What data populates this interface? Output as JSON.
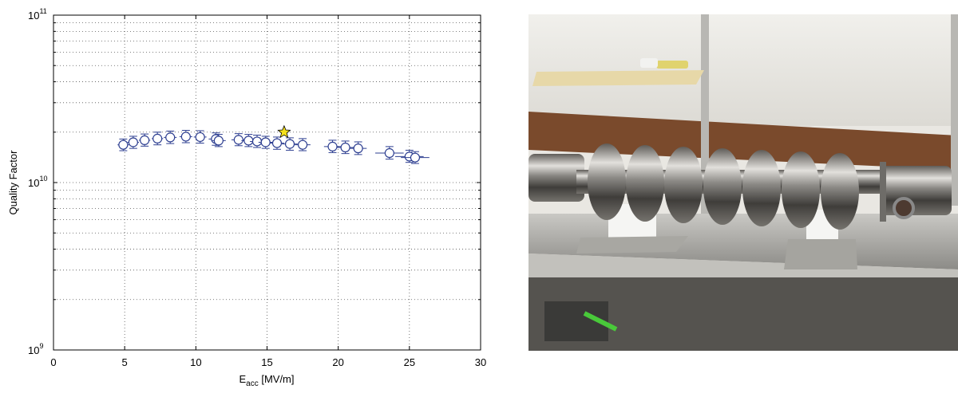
{
  "chart_data": {
    "type": "scatter",
    "title": "",
    "xlabel_main": "E",
    "xlabel_sub": "acc",
    "xlabel_unit": " [MV/m]",
    "ylabel": "Quality Factor",
    "xlim": [
      0,
      30
    ],
    "ylim": [
      1000000000.0,
      100000000000.0
    ],
    "yscale": "log",
    "grid": true,
    "xticks": [
      0,
      5,
      10,
      15,
      20,
      25,
      30
    ],
    "xtick_labels": [
      "0",
      "5",
      "10",
      "15",
      "20",
      "25",
      "30"
    ],
    "ytick_labels": [
      {
        "base": "10",
        "exp": "9",
        "value": 1000000000.0
      },
      {
        "base": "10",
        "exp": "10",
        "value": 10000000000.0
      },
      {
        "base": "10",
        "exp": "11",
        "value": 100000000000.0
      }
    ],
    "marker_color": "#2e3f91",
    "star_color": "#f5e11d",
    "series": [
      {
        "marker": "circle",
        "points": [
          {
            "x": 4.9,
            "y": 16800000000.0,
            "xerr": 0.4,
            "ylo": 15500000000.0,
            "yhi": 18200000000.0
          },
          {
            "x": 5.6,
            "y": 17400000000.0,
            "xerr": 0.4,
            "ylo": 16000000000.0,
            "yhi": 18900000000.0
          },
          {
            "x": 6.4,
            "y": 17900000000.0,
            "xerr": 0.4,
            "ylo": 16500000000.0,
            "yhi": 19500000000.0
          },
          {
            "x": 7.3,
            "y": 18300000000.0,
            "xerr": 0.4,
            "ylo": 16800000000.0,
            "yhi": 20000000000.0
          },
          {
            "x": 8.2,
            "y": 18600000000.0,
            "xerr": 0.45,
            "ylo": 17100000000.0,
            "yhi": 20300000000.0
          },
          {
            "x": 9.3,
            "y": 18800000000.0,
            "xerr": 0.45,
            "ylo": 17300000000.0,
            "yhi": 20500000000.0
          },
          {
            "x": 10.3,
            "y": 18700000000.0,
            "xerr": 0.45,
            "ylo": 17200000000.0,
            "yhi": 20400000000.0
          },
          {
            "x": 11.4,
            "y": 18200000000.0,
            "xerr": 0.5,
            "ylo": 16700000000.0,
            "yhi": 19800000000.0
          },
          {
            "x": 11.6,
            "y": 17800000000.0,
            "xerr": 0.5,
            "ylo": 16400000000.0,
            "yhi": 19400000000.0
          },
          {
            "x": 13.0,
            "y": 18000000000.0,
            "xerr": 0.5,
            "ylo": 16600000000.0,
            "yhi": 19600000000.0
          },
          {
            "x": 13.7,
            "y": 17800000000.0,
            "xerr": 0.5,
            "ylo": 16400000000.0,
            "yhi": 19400000000.0
          },
          {
            "x": 14.3,
            "y": 17600000000.0,
            "xerr": 0.5,
            "ylo": 16200000000.0,
            "yhi": 19200000000.0
          },
          {
            "x": 14.9,
            "y": 17400000000.0,
            "xerr": 0.5,
            "ylo": 16000000000.0,
            "yhi": 18900000000.0
          },
          {
            "x": 15.7,
            "y": 17200000000.0,
            "xerr": 0.5,
            "ylo": 15800000000.0,
            "yhi": 18700000000.0
          },
          {
            "x": 16.6,
            "y": 17000000000.0,
            "xerr": 0.55,
            "ylo": 15600000000.0,
            "yhi": 18500000000.0
          },
          {
            "x": 17.5,
            "y": 16800000000.0,
            "xerr": 0.55,
            "ylo": 15500000000.0,
            "yhi": 18300000000.0
          },
          {
            "x": 19.6,
            "y": 16400000000.0,
            "xerr": 0.6,
            "ylo": 15100000000.0,
            "yhi": 17900000000.0
          },
          {
            "x": 20.5,
            "y": 16200000000.0,
            "xerr": 0.6,
            "ylo": 14900000000.0,
            "yhi": 17700000000.0
          },
          {
            "x": 21.4,
            "y": 16000000000.0,
            "xerr": 0.6,
            "ylo": 14700000000.0,
            "yhi": 17500000000.0
          },
          {
            "x": 23.6,
            "y": 15000000000.0,
            "xerr": 1.0,
            "ylo": 13800000000.0,
            "yhi": 16400000000.0
          },
          {
            "x": 25.0,
            "y": 14300000000.0,
            "xerr": 1.0,
            "ylo": 13200000000.0,
            "yhi": 15600000000.0
          },
          {
            "x": 25.4,
            "y": 14100000000.0,
            "xerr": 1.0,
            "ylo": 13000000000.0,
            "yhi": 15300000000.0
          }
        ]
      },
      {
        "marker": "star",
        "points": [
          {
            "x": 16.2,
            "y": 20000000000.0
          }
        ]
      }
    ]
  }
}
